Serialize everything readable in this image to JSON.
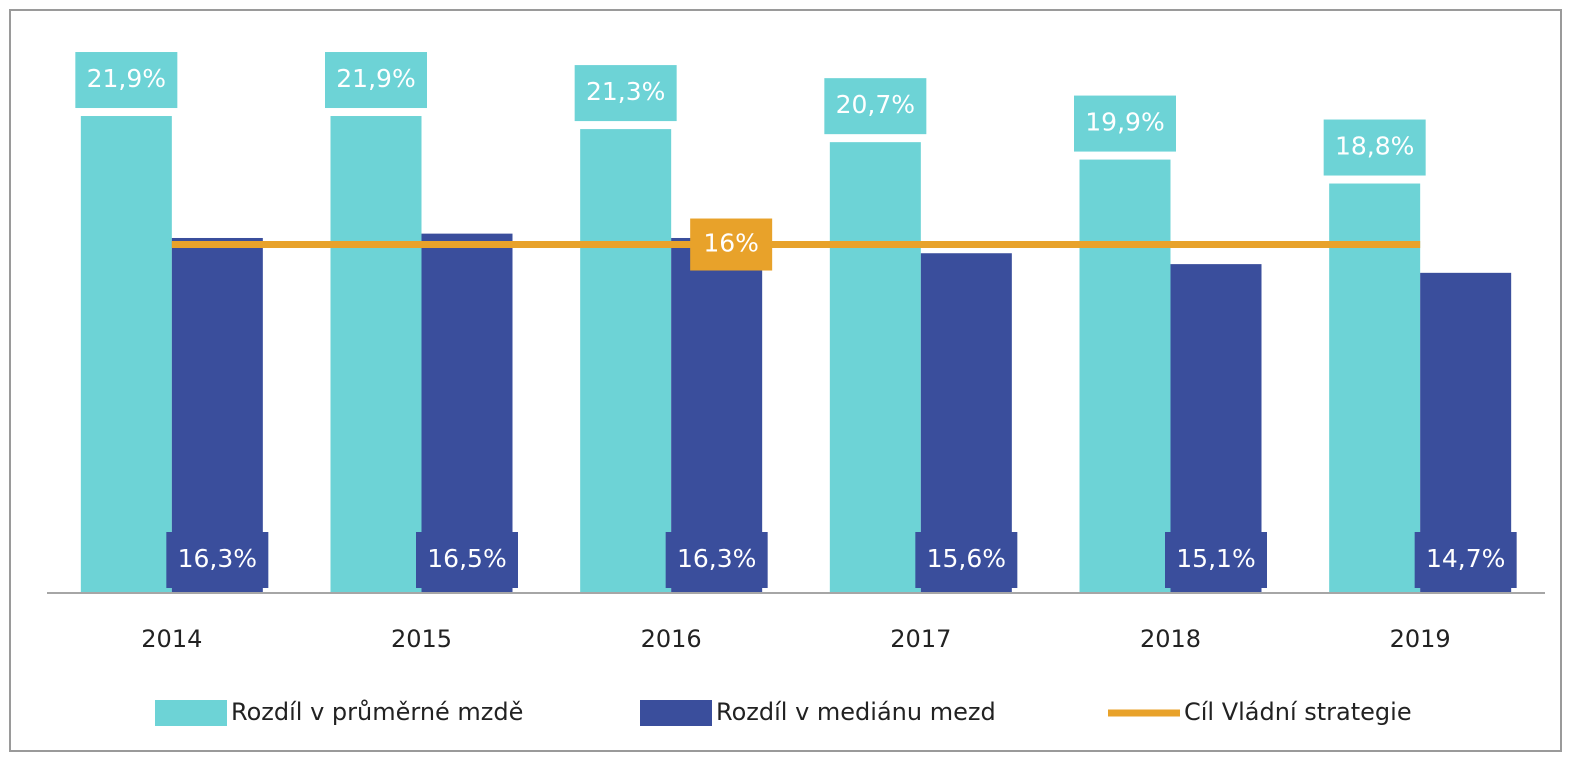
{
  "chart_data": {
    "type": "bar",
    "categories": [
      "2014",
      "2015",
      "2016",
      "2017",
      "2018",
      "2019"
    ],
    "series": [
      {
        "name": "Rozdíl v průměrné mzdě",
        "type": "bar",
        "color": "#6dd3d6",
        "values": [
          21.9,
          21.9,
          21.3,
          20.7,
          19.9,
          18.8
        ],
        "value_labels": [
          "21,9%",
          "21,9%",
          "21,3%",
          "20,7%",
          "19,9%",
          "18,8%"
        ]
      },
      {
        "name": "Rozdíl v mediánu mezd",
        "type": "bar",
        "color": "#3a4e9c",
        "values": [
          16.3,
          16.5,
          16.3,
          15.6,
          15.1,
          14.7
        ],
        "value_labels": [
          "16,3%",
          "16,5%",
          "16,3%",
          "15,6%",
          "15,1%",
          "14,7%"
        ]
      },
      {
        "name": "Cíl Vládní strategie",
        "type": "line",
        "color": "#e8a22a",
        "values": [
          16,
          16,
          16,
          16,
          16,
          16
        ],
        "value_labels": [
          null,
          null,
          "16%",
          null,
          null,
          null
        ]
      }
    ],
    "ylim": [
      0,
      25
    ],
    "legend": "bottom"
  }
}
